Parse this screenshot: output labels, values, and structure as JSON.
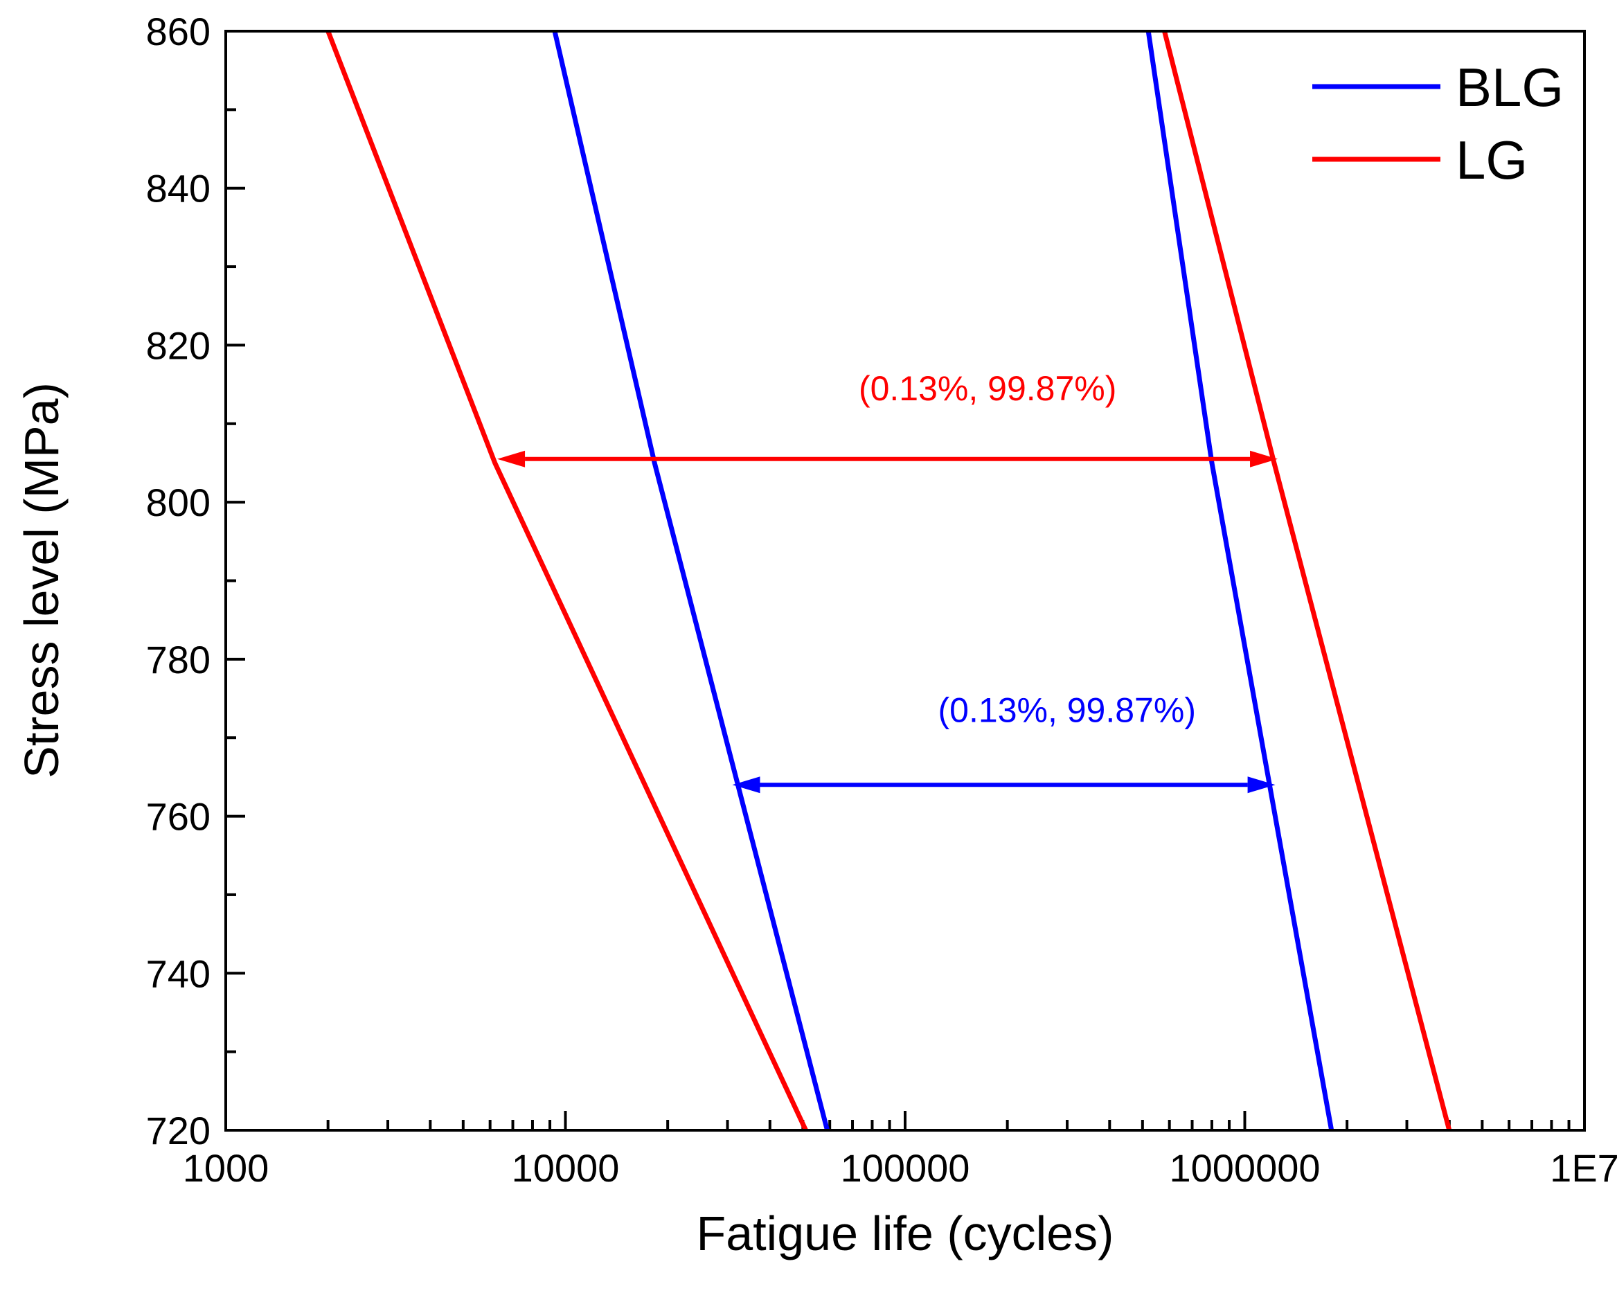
{
  "chart_data": {
    "type": "line",
    "title": "",
    "xlabel": "Fatigue life (cycles)",
    "ylabel": "Stress level (MPa)",
    "xscale": "log",
    "xlim": [
      1000,
      10000000
    ],
    "ylim": [
      720,
      860
    ],
    "xticks": [
      {
        "value": 1000,
        "label": "1000"
      },
      {
        "value": 10000,
        "label": "10000"
      },
      {
        "value": 100000,
        "label": "100000"
      },
      {
        "value": 1000000,
        "label": "1000000"
      },
      {
        "value": 10000000,
        "label": "1E7"
      }
    ],
    "yticks": [
      {
        "value": 720,
        "label": "720"
      },
      {
        "value": 740,
        "label": "740"
      },
      {
        "value": 760,
        "label": "760"
      },
      {
        "value": 780,
        "label": "780"
      },
      {
        "value": 800,
        "label": "800"
      },
      {
        "value": 820,
        "label": "820"
      },
      {
        "value": 840,
        "label": "840"
      },
      {
        "value": 860,
        "label": "860"
      }
    ],
    "legend_position": "top-right",
    "series": [
      {
        "name": "BLG",
        "color": "#0000ff",
        "label": "BLG",
        "show_in_legend": true,
        "points": [
          [
            9300,
            860
          ],
          [
            18300,
            805
          ],
          [
            59000,
            720
          ]
        ]
      },
      {
        "name": "BLG",
        "color": "#0000ff",
        "label": "",
        "show_in_legend": false,
        "points": [
          [
            520000,
            860
          ],
          [
            800000,
            805
          ],
          [
            1800000,
            720
          ]
        ]
      },
      {
        "name": "LG",
        "color": "#ff0000",
        "label": "LG",
        "show_in_legend": true,
        "points": [
          [
            2000,
            860
          ],
          [
            6200,
            805
          ],
          [
            51000,
            720
          ]
        ]
      },
      {
        "name": "LG",
        "color": "#ff0000",
        "label": "",
        "show_in_legend": false,
        "points": [
          [
            580000,
            860
          ],
          [
            1220000,
            805
          ],
          [
            4000000,
            720
          ]
        ]
      }
    ],
    "annotations": [
      {
        "text": "(0.13%, 99.87%)",
        "color": "#ff0000",
        "arrow_from": [
          6300,
          805.5
        ],
        "arrow_to": [
          1250000,
          805.5
        ],
        "text_at": [
          73000,
          813
        ]
      },
      {
        "text": "(0.13%, 99.87%)",
        "color": "#0000ff",
        "arrow_from": [
          31000,
          764
        ],
        "arrow_to": [
          1230000,
          764
        ],
        "text_at": [
          125000,
          772
        ]
      }
    ]
  }
}
